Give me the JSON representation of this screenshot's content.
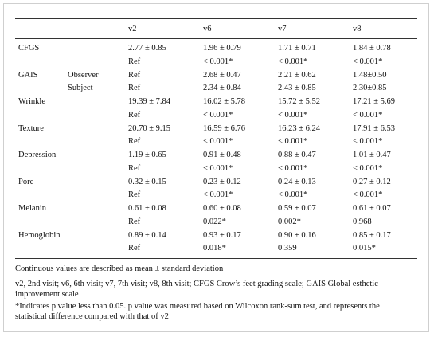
{
  "table": {
    "header": [
      "v2",
      "v6",
      "v7",
      "v8"
    ],
    "rows": [
      {
        "label": "CFGS",
        "cells": [
          "2.77 ± 0.85",
          "1.96 ± 0.79",
          "1.71 ± 0.71",
          "1.84 ± 0.78"
        ]
      },
      {
        "cells": [
          "Ref",
          "< 0.001*",
          "< 0.001*",
          "< 0.001*"
        ]
      },
      {
        "label": "GAIS",
        "sublabel": "Observer",
        "cells": [
          "Ref",
          "2.68 ± 0.47",
          "2.21 ± 0.62",
          "1.48±0.50"
        ]
      },
      {
        "sublabel": "Subject",
        "cells": [
          "Ref",
          "2.34 ± 0.84",
          "2.43 ± 0.85",
          "2.30±0.85"
        ]
      },
      {
        "label": "Wrinkle",
        "cells": [
          "19.39 ± 7.84",
          "16.02 ± 5.78",
          "15.72 ± 5.52",
          "17.21 ± 5.69"
        ]
      },
      {
        "cells": [
          "Ref",
          "< 0.001*",
          "< 0.001*",
          "< 0.001*"
        ]
      },
      {
        "label": "Texture",
        "cells": [
          "20.70 ± 9.15",
          "16.59 ± 6.76",
          "16.23 ± 6.24",
          "17.91 ± 6.53"
        ]
      },
      {
        "cells": [
          "Ref",
          "< 0.001*",
          "< 0.001*",
          "< 0.001*"
        ]
      },
      {
        "label": "Depression",
        "cells": [
          "1.19 ± 0.65",
          "0.91 ± 0.48",
          "0.88 ± 0.47",
          "1.01 ± 0.47"
        ]
      },
      {
        "cells": [
          "Ref",
          "< 0.001*",
          "< 0.001*",
          "< 0.001*"
        ]
      },
      {
        "label": "Pore",
        "cells": [
          "0.32 ± 0.15",
          "0.23 ± 0.12",
          "0.24 ± 0.13",
          "0.27 ± 0.12"
        ]
      },
      {
        "cells": [
          "Ref",
          "< 0.001*",
          "< 0.001*",
          "< 0.001*"
        ]
      },
      {
        "label": "Melanin",
        "cells": [
          "0.61 ± 0.08",
          "0.60 ± 0.08",
          "0.59 ± 0.07",
          "0.61 ± 0.07"
        ]
      },
      {
        "cells": [
          "Ref",
          "0.022*",
          "0.002*",
          "0.968"
        ]
      },
      {
        "label": "Hemoglobin",
        "cells": [
          "0.89 ± 0.14",
          "0.93 ± 0.17",
          "0.90 ± 0.16",
          "0.85 ± 0.17"
        ]
      },
      {
        "cells": [
          "Ref",
          "0.018*",
          "0.359",
          "0.015*"
        ]
      }
    ]
  },
  "footnotes": [
    "Continuous values are described as mean ± standard deviation",
    "v2, 2nd visit; v6, 6th visit; v7, 7th visit; v8, 8th visit; CFGS Crow’s feet grading scale; GAIS Global esthetic improvement scale",
    "*Indicates p value less than 0.05. p value was measured based on Wilcoxon rank-sum test, and represents the statistical difference compared with that of v2"
  ]
}
